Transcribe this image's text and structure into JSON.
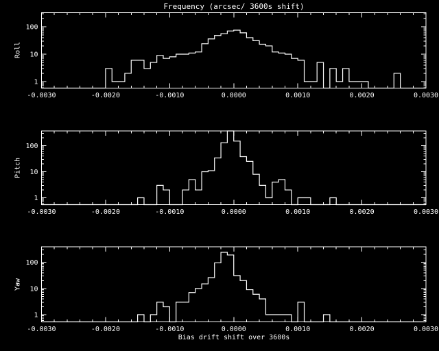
{
  "title": "Frequency (arcsec/ 3600s shift)",
  "xlabel": "Bias drift shift over 3600s",
  "colors": {
    "background": "#000000",
    "foreground": "#ffffff"
  },
  "x_tick_labels": [
    "-0.0030",
    "-0.0020",
    "-0.0010",
    "0.0000",
    "0.0010",
    "0.0020",
    "0.0030"
  ],
  "y_tick_labels": [
    "1",
    "10",
    "100"
  ],
  "chart_data": [
    {
      "type": "histogram-step",
      "series": "Roll",
      "ylabel": "Roll",
      "yscale": "log",
      "xlim": [
        -0.003,
        0.003
      ],
      "ylim": [
        0.55,
        325
      ],
      "yticks": [
        1,
        10,
        100
      ],
      "xticks": [
        -0.003,
        -0.002,
        -0.001,
        0,
        0.001,
        0.002,
        0.003
      ],
      "x_minor_step": 0.0002,
      "bin_start": -0.003,
      "bin_width": 0.0001,
      "counts": [
        0,
        0,
        0,
        0,
        0,
        0,
        0,
        0,
        0,
        0,
        3,
        1,
        1,
        2,
        6,
        6,
        3,
        5,
        9,
        7,
        8,
        10,
        10,
        11,
        12,
        24,
        36,
        48,
        56,
        70,
        75,
        60,
        40,
        31,
        23,
        20,
        12,
        11,
        10,
        7,
        6,
        1,
        1,
        5,
        0,
        3,
        1,
        3,
        1,
        1,
        1,
        0,
        0,
        0,
        0,
        2,
        0,
        0,
        0,
        0
      ]
    },
    {
      "type": "histogram-step",
      "series": "Pitch",
      "ylabel": "Pitch",
      "yscale": "log",
      "xlim": [
        -0.003,
        0.003
      ],
      "ylim": [
        0.55,
        368
      ],
      "yticks": [
        1,
        10,
        100
      ],
      "xticks": [
        -0.003,
        -0.002,
        -0.001,
        0,
        0.001,
        0.002,
        0.003
      ],
      "x_minor_step": 0.0002,
      "bin_start": -0.003,
      "bin_width": 0.0001,
      "counts": [
        0,
        0,
        0,
        0,
        0,
        0,
        0,
        0,
        0,
        0,
        0,
        0,
        0,
        0,
        0,
        1,
        0,
        0,
        3,
        2,
        0,
        0,
        2,
        5,
        2,
        10,
        11,
        34,
        130,
        400,
        150,
        38,
        25,
        8,
        3,
        1,
        4,
        5,
        2,
        0,
        1,
        1,
        0,
        0,
        0,
        1,
        0,
        0,
        0,
        0,
        0,
        0,
        0,
        0,
        0,
        0,
        0,
        0,
        0,
        0
      ]
    },
    {
      "type": "histogram-step",
      "series": "Yaw",
      "ylabel": "Yaw",
      "yscale": "log",
      "xlim": [
        -0.003,
        0.003
      ],
      "ylim": [
        0.55,
        390
      ],
      "yticks": [
        1,
        10,
        100
      ],
      "xticks": [
        -0.003,
        -0.002,
        -0.001,
        0,
        0.001,
        0.002,
        0.003
      ],
      "x_minor_step": 0.0002,
      "bin_start": -0.003,
      "bin_width": 0.0001,
      "counts": [
        0,
        0,
        0,
        0,
        0,
        0,
        0,
        0,
        0,
        0,
        0,
        0,
        0,
        0,
        0,
        1,
        0,
        1,
        3,
        2,
        0,
        3,
        3,
        7,
        10,
        15,
        26,
        95,
        240,
        190,
        31,
        20,
        9,
        6,
        4,
        1,
        1,
        1,
        1,
        0,
        3,
        0,
        0,
        0,
        1,
        0,
        0,
        0,
        0,
        0,
        0,
        0,
        0,
        0,
        0,
        0,
        0,
        0,
        0,
        0
      ]
    }
  ]
}
